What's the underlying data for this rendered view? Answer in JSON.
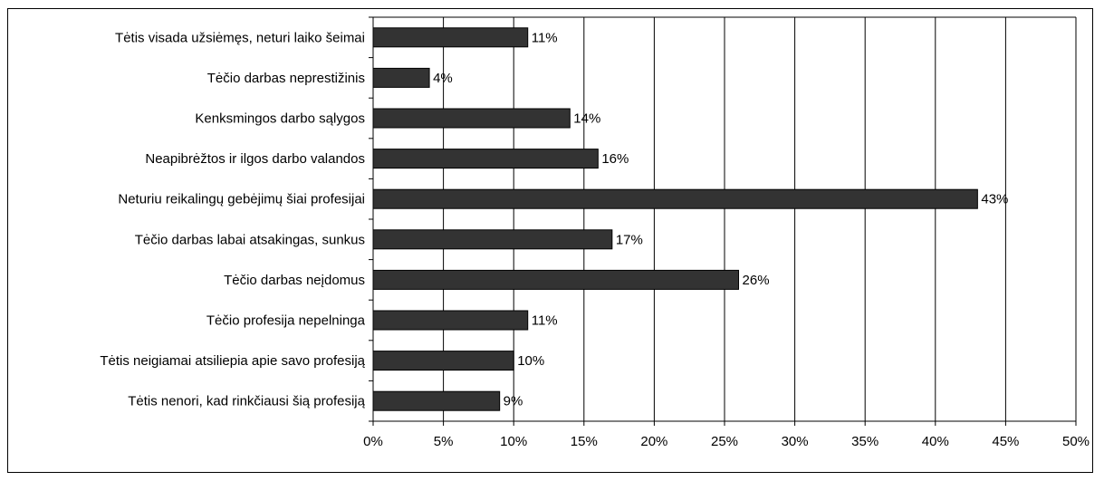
{
  "chart_data": {
    "type": "bar",
    "orientation": "horizontal",
    "categories": [
      "Tėtis visada užsiėmęs, neturi laiko šeimai",
      "Tėčio darbas neprestižinis",
      "Kenksmingos darbo sąlygos",
      "Neapibrėžtos ir ilgos darbo valandos",
      "Neturiu reikalingų gebėjimų šiai  profesijai",
      "Tėčio darbas labai atsakingas, sunkus",
      "Tėčio darbas neįdomus",
      "Tėčio profesija nepelninga",
      "Tėtis neigiamai atsiliepia apie savo profesiją",
      "Tėtis nenori, kad rinkčiausi šią profesiją"
    ],
    "values": [
      11,
      4,
      14,
      16,
      43,
      17,
      26,
      11,
      10,
      9
    ],
    "data_labels": [
      "11%",
      "4%",
      "14%",
      "16%",
      "43%",
      "17%",
      "26%",
      "11%",
      "10%",
      "9%"
    ],
    "xlim": [
      0,
      50
    ],
    "x_ticks": [
      0,
      5,
      10,
      15,
      20,
      25,
      30,
      35,
      40,
      45,
      50
    ],
    "x_tick_labels": [
      "0%",
      "5%",
      "10%",
      "15%",
      "20%",
      "25%",
      "30%",
      "35%",
      "40%",
      "45%",
      "50%"
    ],
    "vertical_gridlines": true,
    "bar_color": "#333333",
    "title": "",
    "xlabel": "",
    "ylabel": ""
  }
}
